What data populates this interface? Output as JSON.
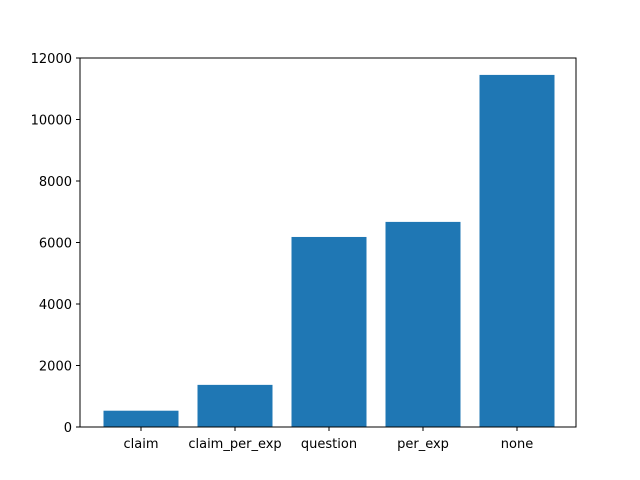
{
  "chart_data": {
    "type": "bar",
    "categories": [
      "claim",
      "claim_per_exp",
      "question",
      "per_exp",
      "none"
    ],
    "values": [
      530,
      1370,
      6180,
      6670,
      11450
    ],
    "title": "",
    "xlabel": "",
    "ylabel": "",
    "ylim": [
      0,
      12000
    ],
    "yticks": [
      0,
      2000,
      4000,
      6000,
      8000,
      10000,
      12000
    ],
    "bar_color": "#1f77b4",
    "grid": false,
    "legend": "none"
  }
}
